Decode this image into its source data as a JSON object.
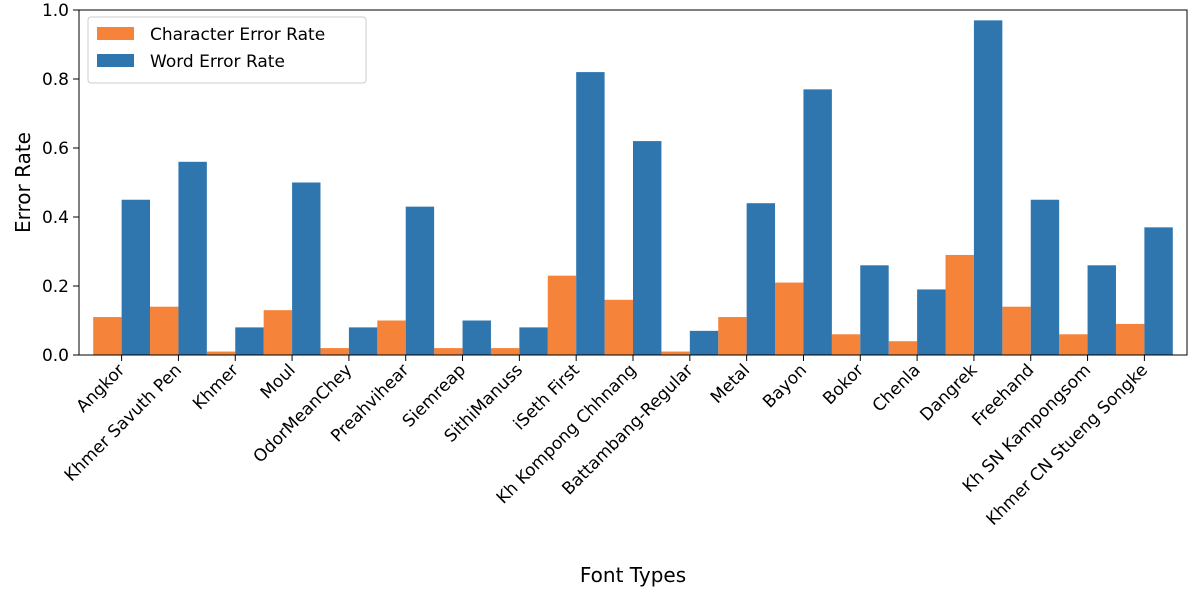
{
  "chart_data": {
    "type": "bar",
    "categories": [
      "Angkor",
      "Khmer Savuth Pen",
      "Khmer",
      "Moul",
      "OdorMeanChey",
      "Preahvihear",
      "Siemreap",
      "SithiManuss",
      "iSeth First",
      "Kh Kompong Chhnang",
      "Battambang-Regular",
      "Metal",
      "Bayon",
      "Bokor",
      "Chenla",
      "Dangrek",
      "Freehand",
      "Kh SN Kampongsom",
      "Khmer CN Stueng Songke"
    ],
    "series": [
      {
        "name": "Character Error Rate",
        "color": "#f5833a",
        "values": [
          0.11,
          0.14,
          0.01,
          0.13,
          0.02,
          0.1,
          0.02,
          0.02,
          0.23,
          0.16,
          0.01,
          0.11,
          0.21,
          0.06,
          0.04,
          0.29,
          0.14,
          0.06,
          0.09
        ]
      },
      {
        "name": "Word Error Rate",
        "color": "#2f75ae",
        "values": [
          0.45,
          0.56,
          0.08,
          0.5,
          0.08,
          0.43,
          0.1,
          0.08,
          0.82,
          0.62,
          0.07,
          0.44,
          0.77,
          0.26,
          0.19,
          0.97,
          0.45,
          0.26,
          0.37
        ]
      }
    ],
    "title": "",
    "xlabel": "Font Types",
    "ylabel": "Error Rate",
    "ylim": [
      0,
      1.0
    ],
    "yticks": [
      "0.0",
      "0.2",
      "0.4",
      "0.6",
      "0.8",
      "1.0"
    ],
    "legend_position": "top-left",
    "grid": false
  }
}
